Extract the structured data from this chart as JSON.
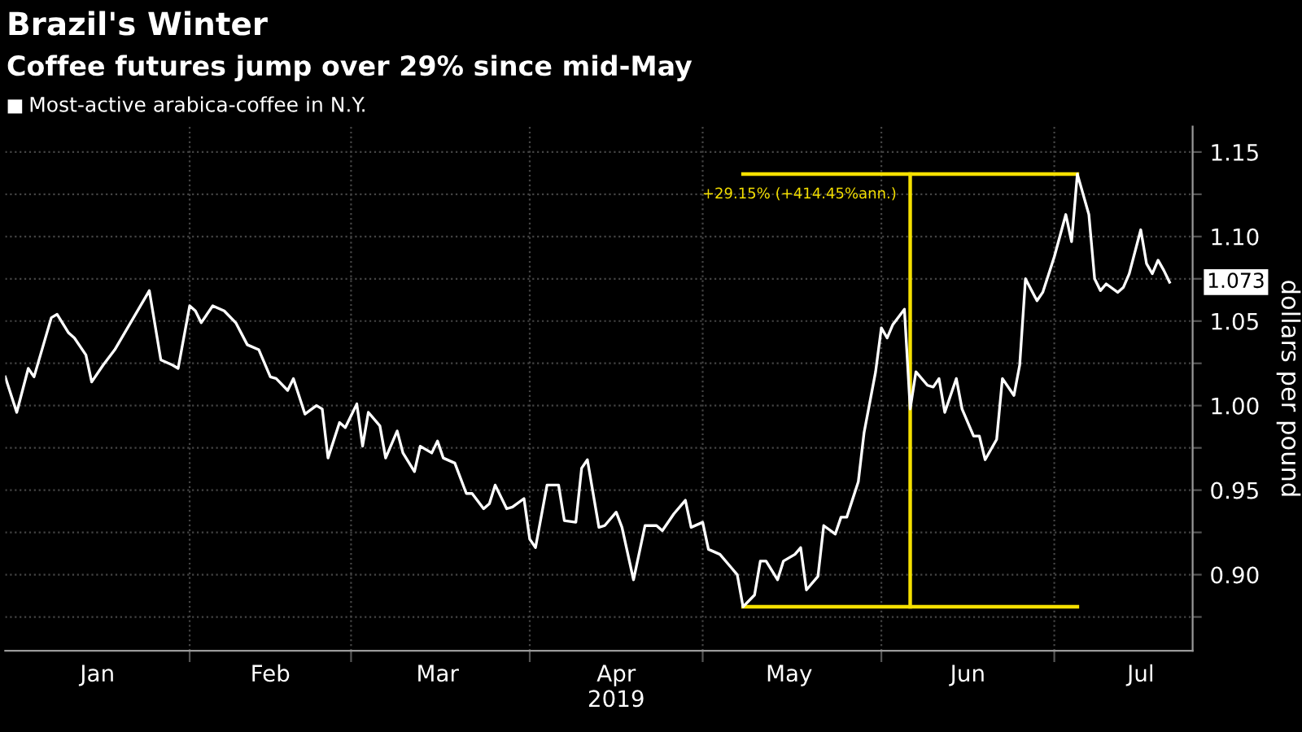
{
  "chart_data": {
    "type": "line",
    "title": "Brazil's Winter",
    "subtitle": "Coffee futures jump over 29% since mid-May",
    "ylabel": "dollars per pound",
    "legend": "top left",
    "grid": true,
    "marker": "none",
    "line_style": "solid",
    "xlim": [
      "2018-12-31",
      "2019-07-25"
    ],
    "ylim": [
      0.855,
      1.165
    ],
    "xticks": [
      {
        "value": "2019-01-16",
        "label": "Jan"
      },
      {
        "value": "2019-02-01",
        "label": null
      },
      {
        "value": "2019-02-15",
        "label": "Feb"
      },
      {
        "value": "2019-03-01",
        "label": null
      },
      {
        "value": "2019-03-16",
        "label": "Mar"
      },
      {
        "value": "2019-04-01",
        "label": null
      },
      {
        "value": "2019-04-16",
        "label": "Apr\n2019"
      },
      {
        "value": "2019-05-01",
        "label": null
      },
      {
        "value": "2019-05-16",
        "label": "May"
      },
      {
        "value": "2019-06-01",
        "label": null
      },
      {
        "value": "2019-06-16",
        "label": "Jun"
      },
      {
        "value": "2019-07-01",
        "label": null
      },
      {
        "value": "2019-07-16",
        "label": "Jul"
      }
    ],
    "yticks": [
      {
        "value": 0.875,
        "label": null
      },
      {
        "value": 0.9,
        "label": "0.90"
      },
      {
        "value": 0.925,
        "label": null
      },
      {
        "value": 0.95,
        "label": "0.95"
      },
      {
        "value": 0.975,
        "label": null
      },
      {
        "value": 1.0,
        "label": "1.00"
      },
      {
        "value": 1.025,
        "label": null
      },
      {
        "value": 1.05,
        "label": "1.05"
      },
      {
        "value": 1.075,
        "label": null
      },
      {
        "value": 1.1,
        "label": "1.10"
      },
      {
        "value": 1.125,
        "label": null
      },
      {
        "value": 1.15,
        "label": "1.15"
      }
    ],
    "annotations": [
      {
        "text": "+29.15% (+414.45%ann.)",
        "x": "2019-06-06",
        "y": 1.137
      },
      {
        "text": "1.073",
        "x": "2019-07-21",
        "y": 1.073
      }
    ],
    "series": [
      {
        "name": "Most-active arabica-coffee in N.Y.",
        "color": "#ffffff",
        "x": [
          "2018-12-31",
          "2019-01-02",
          "2019-01-04",
          "2019-01-05",
          "2019-01-08",
          "2019-01-09",
          "2019-01-11",
          "2019-01-12",
          "2019-01-14",
          "2019-01-15",
          "2019-01-17",
          "2019-01-19",
          "2019-01-25",
          "2019-01-27",
          "2019-01-29",
          "2019-01-30",
          "2019-02-01",
          "2019-02-02",
          "2019-02-03",
          "2019-02-05",
          "2019-02-07",
          "2019-02-09",
          "2019-02-11",
          "2019-02-13",
          "2019-02-15",
          "2019-02-16",
          "2019-02-18",
          "2019-02-19",
          "2019-02-21",
          "2019-02-23",
          "2019-02-24",
          "2019-02-25",
          "2019-02-27",
          "2019-02-28",
          "2019-03-02",
          "2019-03-03",
          "2019-03-04",
          "2019-03-06",
          "2019-03-07",
          "2019-03-09",
          "2019-03-10",
          "2019-03-12",
          "2019-03-13",
          "2019-03-15",
          "2019-03-16",
          "2019-03-17",
          "2019-03-19",
          "2019-03-21",
          "2019-03-22",
          "2019-03-24",
          "2019-03-25",
          "2019-03-26",
          "2019-03-28",
          "2019-03-29",
          "2019-03-31",
          "2019-04-01",
          "2019-04-02",
          "2019-04-04",
          "2019-04-06",
          "2019-04-07",
          "2019-04-09",
          "2019-04-10",
          "2019-04-11",
          "2019-04-13",
          "2019-04-14",
          "2019-04-16",
          "2019-04-17",
          "2019-04-19",
          "2019-04-21",
          "2019-04-23",
          "2019-04-24",
          "2019-04-26",
          "2019-04-28",
          "2019-04-29",
          "2019-05-01",
          "2019-05-02",
          "2019-05-04",
          "2019-05-06",
          "2019-05-07",
          "2019-05-08",
          "2019-05-10",
          "2019-05-11",
          "2019-05-12",
          "2019-05-14",
          "2019-05-15",
          "2019-05-17",
          "2019-05-18",
          "2019-05-19",
          "2019-05-21",
          "2019-05-22",
          "2019-05-24",
          "2019-05-25",
          "2019-05-26",
          "2019-05-28",
          "2019-05-29",
          "2019-05-31",
          "2019-06-01",
          "2019-06-02",
          "2019-06-03",
          "2019-06-05",
          "2019-06-06",
          "2019-06-07",
          "2019-06-09",
          "2019-06-10",
          "2019-06-11",
          "2019-06-12",
          "2019-06-14",
          "2019-06-15",
          "2019-06-17",
          "2019-06-18",
          "2019-06-19",
          "2019-06-21",
          "2019-06-22",
          "2019-06-24",
          "2019-06-25",
          "2019-06-26",
          "2019-06-28",
          "2019-06-29",
          "2019-07-01",
          "2019-07-03",
          "2019-07-04",
          "2019-07-05",
          "2019-07-07",
          "2019-07-08",
          "2019-07-09",
          "2019-07-10",
          "2019-07-12",
          "2019-07-13",
          "2019-07-14",
          "2019-07-16",
          "2019-07-17",
          "2019-07-18",
          "2019-07-19",
          "2019-07-20",
          "2019-07-21"
        ],
        "values": [
          1.017,
          0.996,
          1.022,
          1.017,
          1.052,
          1.054,
          1.043,
          1.04,
          1.03,
          1.014,
          1.024,
          1.033,
          1.068,
          1.027,
          1.024,
          1.022,
          1.059,
          1.056,
          1.049,
          1.059,
          1.056,
          1.049,
          1.036,
          1.033,
          1.017,
          1.016,
          1.009,
          1.016,
          0.995,
          1.0,
          0.998,
          0.969,
          0.99,
          0.987,
          1.001,
          0.976,
          0.996,
          0.988,
          0.969,
          0.985,
          0.972,
          0.961,
          0.976,
          0.972,
          0.979,
          0.969,
          0.966,
          0.948,
          0.948,
          0.939,
          0.942,
          0.953,
          0.939,
          0.94,
          0.945,
          0.921,
          0.916,
          0.953,
          0.953,
          0.932,
          0.931,
          0.963,
          0.968,
          0.928,
          0.929,
          0.937,
          0.928,
          0.897,
          0.929,
          0.929,
          0.926,
          0.936,
          0.944,
          0.928,
          0.931,
          0.915,
          0.912,
          0.904,
          0.9,
          0.881,
          0.888,
          0.908,
          0.908,
          0.897,
          0.908,
          0.912,
          0.916,
          0.891,
          0.899,
          0.929,
          0.924,
          0.934,
          0.934,
          0.955,
          0.984,
          1.02,
          1.046,
          1.04,
          1.048,
          1.057,
          0.998,
          1.02,
          1.012,
          1.011,
          1.016,
          0.996,
          1.016,
          0.998,
          0.982,
          0.982,
          0.968,
          0.98,
          1.016,
          1.006,
          1.024,
          1.075,
          1.062,
          1.067,
          1.088,
          1.113,
          1.097,
          1.137,
          1.113,
          1.075,
          1.068,
          1.072,
          1.067,
          1.07,
          1.078,
          1.104,
          1.084,
          1.078,
          1.086,
          1.08,
          1.073
        ]
      },
      {
        "color": "#f5e000",
        "x": [
          "2019-05-08",
          "2019-07-05"
        ],
        "values": [
          1.137,
          1.137
        ]
      },
      {
        "color": "#f5e000",
        "x": [
          "2019-05-08",
          "2019-07-05"
        ],
        "values": [
          0.881,
          0.881
        ]
      },
      {
        "color": "#f5e000",
        "x": [
          "2019-06-06",
          "2019-06-06"
        ],
        "values": [
          0.881,
          1.137
        ]
      }
    ]
  }
}
